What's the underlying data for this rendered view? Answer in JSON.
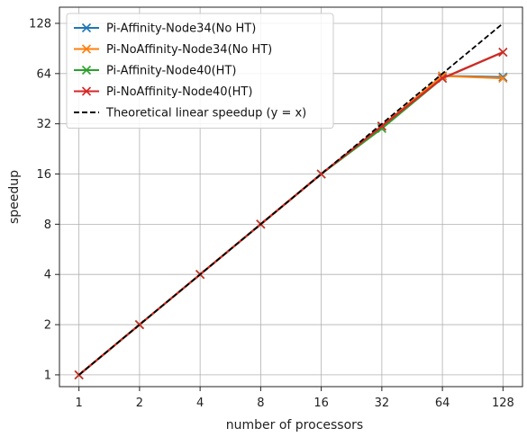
{
  "chart_data": {
    "type": "line",
    "xlabel": "number of processors",
    "ylabel": "speedup",
    "xscale": "log2",
    "yscale": "log2",
    "xlim": [
      0.8,
      160
    ],
    "ylim": [
      0.85,
      160
    ],
    "grid": true,
    "legend_position": "top-left",
    "x_ticks": [
      1,
      2,
      4,
      8,
      16,
      32,
      64,
      128
    ],
    "x_tick_labels": [
      "1",
      "2",
      "4",
      "8",
      "16",
      "32",
      "64",
      "128"
    ],
    "y_ticks": [
      1,
      2,
      4,
      8,
      16,
      32,
      64,
      128
    ],
    "y_tick_labels": [
      "1",
      "2",
      "4",
      "8",
      "16",
      "32",
      "64",
      "128"
    ],
    "x": [
      1,
      2,
      4,
      8,
      16,
      32,
      64,
      128
    ],
    "series": [
      {
        "name": "Pi-Affinity-Node34(No HT)",
        "color": "#1f77b4",
        "marker": "x",
        "style": "solid",
        "values": [
          1,
          2,
          4,
          8,
          16,
          31,
          62,
          61
        ]
      },
      {
        "name": "Pi-NoAffinity-Node34(No HT)",
        "color": "#ff7f0e",
        "marker": "x",
        "style": "solid",
        "values": [
          1,
          2,
          4,
          8,
          16,
          31,
          62,
          60
        ]
      },
      {
        "name": "Pi-Affinity-Node40(HT)",
        "color": "#2ca02c",
        "marker": "x",
        "style": "solid",
        "values": [
          1,
          2,
          4,
          8,
          16,
          30,
          60,
          86
        ]
      },
      {
        "name": "Pi-NoAffinity-Node40(HT)",
        "color": "#d62728",
        "marker": "x",
        "style": "solid",
        "values": [
          1,
          2,
          4,
          8,
          16,
          31,
          60,
          86
        ]
      },
      {
        "name": "Theoretical linear speedup (y = x)",
        "color": "#000000",
        "marker": "none",
        "style": "dashed",
        "values": [
          1,
          2,
          4,
          8,
          16,
          32,
          64,
          128
        ]
      }
    ]
  }
}
